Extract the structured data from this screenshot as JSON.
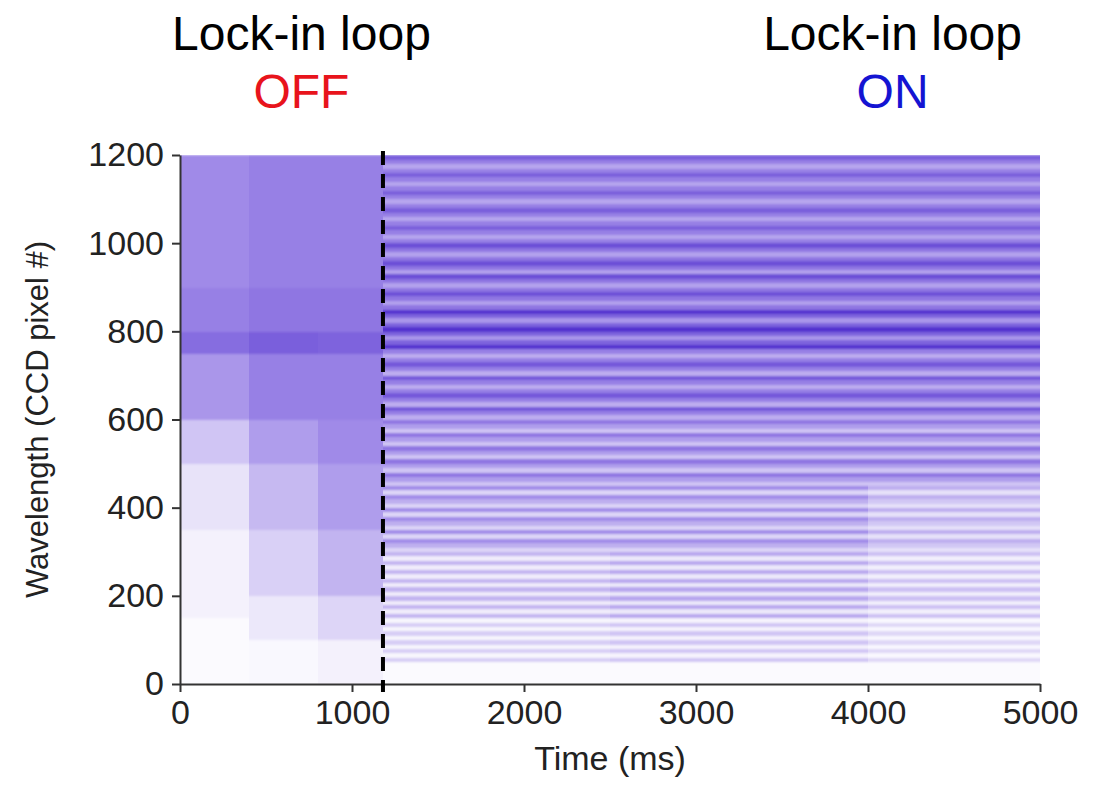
{
  "chart_data": {
    "type": "heatmap",
    "x_label": "Time (ms)",
    "y_label": "Wavelength (CCD pixel #)",
    "xlim": [
      0,
      5000
    ],
    "ylim": [
      0,
      1200
    ],
    "xticks": [
      0,
      1000,
      2000,
      3000,
      4000,
      5000
    ],
    "yticks": [
      0,
      200,
      400,
      600,
      800,
      1000,
      1200
    ],
    "grid": false,
    "zlim": [
      0,
      1
    ],
    "switch_time": 1180,
    "annotations": [
      {
        "text": "Lock-in loop",
        "label": "OFF",
        "color": "#e8141c"
      },
      {
        "text": "Lock-in loop",
        "label": "ON",
        "color": "#1414d2"
      }
    ],
    "x_edges": [
      0,
      400,
      800,
      1180,
      2500,
      4000,
      5000
    ],
    "y_edges": [
      0,
      10,
      20,
      30,
      40,
      50,
      60,
      70,
      80,
      90,
      100,
      110,
      120,
      130,
      140,
      150,
      160,
      170,
      180,
      190,
      200,
      210,
      220,
      230,
      240,
      250,
      260,
      270,
      280,
      290,
      300,
      310,
      320,
      330,
      340,
      350,
      360,
      370,
      380,
      390,
      400,
      410,
      420,
      430,
      440,
      450,
      460,
      470,
      480,
      490,
      500,
      510,
      520,
      530,
      540,
      550,
      560,
      570,
      580,
      590,
      600,
      610,
      620,
      630,
      640,
      650,
      660,
      670,
      680,
      690,
      700,
      710,
      720,
      730,
      740,
      750,
      760,
      770,
      780,
      790,
      800,
      810,
      820,
      830,
      840,
      850,
      860,
      870,
      880,
      890,
      900,
      910,
      920,
      930,
      940,
      950,
      960,
      970,
      980,
      990,
      1000,
      1010,
      1020,
      1030,
      1040,
      1050,
      1060,
      1070,
      1080,
      1090,
      1100,
      1110,
      1120,
      1130,
      1140,
      1150,
      1160,
      1170,
      1180,
      1190,
      1200
    ],
    "values": [
      [
        0.02,
        0.03,
        0.06,
        0.02,
        0.02,
        0.02
      ],
      [
        0.02,
        0.03,
        0.06,
        0.02,
        0.02,
        0.02
      ],
      [
        0.02,
        0.03,
        0.06,
        0.02,
        0.02,
        0.02
      ],
      [
        0.02,
        0.03,
        0.06,
        0.02,
        0.02,
        0.02
      ],
      [
        0.02,
        0.03,
        0.06,
        0.02,
        0.02,
        0.02
      ],
      [
        0.02,
        0.03,
        0.06,
        0.21,
        0.25,
        0.17
      ],
      [
        0.02,
        0.03,
        0.06,
        0.04,
        0.05,
        0.03
      ],
      [
        0.02,
        0.03,
        0.06,
        0.21,
        0.25,
        0.17
      ],
      [
        0.02,
        0.03,
        0.06,
        0.04,
        0.05,
        0.03
      ],
      [
        0.02,
        0.03,
        0.06,
        0.21,
        0.25,
        0.17
      ],
      [
        0.02,
        0.1,
        0.18,
        0.04,
        0.05,
        0.03
      ],
      [
        0.02,
        0.1,
        0.18,
        0.21,
        0.25,
        0.17
      ],
      [
        0.02,
        0.1,
        0.18,
        0.04,
        0.05,
        0.03
      ],
      [
        0.02,
        0.1,
        0.18,
        0.21,
        0.25,
        0.17
      ],
      [
        0.02,
        0.1,
        0.18,
        0.04,
        0.05,
        0.03
      ],
      [
        0.06,
        0.1,
        0.18,
        0.32,
        0.38,
        0.27
      ],
      [
        0.06,
        0.1,
        0.18,
        0.08,
        0.1,
        0.07
      ],
      [
        0.06,
        0.1,
        0.18,
        0.32,
        0.38,
        0.27
      ],
      [
        0.06,
        0.1,
        0.18,
        0.08,
        0.1,
        0.07
      ],
      [
        0.06,
        0.1,
        0.18,
        0.32,
        0.38,
        0.27
      ],
      [
        0.06,
        0.2,
        0.32,
        0.08,
        0.1,
        0.07
      ],
      [
        0.06,
        0.2,
        0.32,
        0.32,
        0.38,
        0.27
      ],
      [
        0.06,
        0.2,
        0.32,
        0.08,
        0.1,
        0.07
      ],
      [
        0.06,
        0.2,
        0.32,
        0.32,
        0.38,
        0.27
      ],
      [
        0.06,
        0.2,
        0.32,
        0.08,
        0.1,
        0.07
      ],
      [
        0.06,
        0.2,
        0.32,
        0.32,
        0.38,
        0.27
      ],
      [
        0.06,
        0.2,
        0.32,
        0.08,
        0.1,
        0.07
      ],
      [
        0.06,
        0.2,
        0.32,
        0.32,
        0.38,
        0.27
      ],
      [
        0.06,
        0.2,
        0.32,
        0.08,
        0.1,
        0.07
      ],
      [
        0.06,
        0.2,
        0.32,
        0.32,
        0.38,
        0.27
      ],
      [
        0.06,
        0.2,
        0.32,
        0.18,
        0.18,
        0.13
      ],
      [
        0.06,
        0.2,
        0.32,
        0.34,
        0.34,
        0.24
      ],
      [
        0.06,
        0.2,
        0.32,
        0.5,
        0.5,
        0.35
      ],
      [
        0.06,
        0.2,
        0.32,
        0.18,
        0.18,
        0.13
      ],
      [
        0.06,
        0.2,
        0.32,
        0.5,
        0.5,
        0.35
      ],
      [
        0.12,
        0.3,
        0.42,
        0.18,
        0.18,
        0.13
      ],
      [
        0.12,
        0.3,
        0.42,
        0.34,
        0.34,
        0.24
      ],
      [
        0.12,
        0.3,
        0.42,
        0.5,
        0.5,
        0.35
      ],
      [
        0.12,
        0.3,
        0.42,
        0.18,
        0.18,
        0.13
      ],
      [
        0.12,
        0.3,
        0.42,
        0.5,
        0.5,
        0.35
      ],
      [
        0.12,
        0.3,
        0.42,
        0.18,
        0.18,
        0.13
      ],
      [
        0.12,
        0.3,
        0.42,
        0.34,
        0.34,
        0.24
      ],
      [
        0.12,
        0.3,
        0.42,
        0.5,
        0.5,
        0.35
      ],
      [
        0.12,
        0.3,
        0.42,
        0.18,
        0.18,
        0.13
      ],
      [
        0.12,
        0.3,
        0.42,
        0.5,
        0.5,
        0.35
      ],
      [
        0.12,
        0.3,
        0.42,
        0.25,
        0.25,
        0.25
      ],
      [
        0.12,
        0.3,
        0.42,
        0.42,
        0.42,
        0.42
      ],
      [
        0.12,
        0.3,
        0.42,
        0.6,
        0.6,
        0.6
      ],
      [
        0.12,
        0.3,
        0.42,
        0.25,
        0.25,
        0.25
      ],
      [
        0.12,
        0.3,
        0.42,
        0.42,
        0.42,
        0.42
      ],
      [
        0.25,
        0.42,
        0.5,
        0.6,
        0.6,
        0.6
      ],
      [
        0.25,
        0.42,
        0.5,
        0.25,
        0.25,
        0.25
      ],
      [
        0.25,
        0.42,
        0.5,
        0.42,
        0.42,
        0.42
      ],
      [
        0.25,
        0.42,
        0.5,
        0.6,
        0.6,
        0.6
      ],
      [
        0.25,
        0.42,
        0.5,
        0.25,
        0.25,
        0.25
      ],
      [
        0.25,
        0.42,
        0.5,
        0.42,
        0.42,
        0.42
      ],
      [
        0.25,
        0.42,
        0.5,
        0.6,
        0.6,
        0.6
      ],
      [
        0.25,
        0.42,
        0.5,
        0.25,
        0.25,
        0.25
      ],
      [
        0.25,
        0.42,
        0.5,
        0.42,
        0.42,
        0.42
      ],
      [
        0.25,
        0.42,
        0.5,
        0.6,
        0.6,
        0.6
      ],
      [
        0.45,
        0.55,
        0.55,
        0.35,
        0.35,
        0.35
      ],
      [
        0.45,
        0.55,
        0.55,
        0.55,
        0.55,
        0.55
      ],
      [
        0.45,
        0.55,
        0.55,
        0.75,
        0.75,
        0.75
      ],
      [
        0.45,
        0.55,
        0.55,
        0.35,
        0.35,
        0.35
      ],
      [
        0.45,
        0.55,
        0.55,
        0.55,
        0.55,
        0.55
      ],
      [
        0.45,
        0.55,
        0.55,
        0.75,
        0.75,
        0.75
      ],
      [
        0.45,
        0.55,
        0.55,
        0.55,
        0.55,
        0.55
      ],
      [
        0.45,
        0.55,
        0.55,
        0.35,
        0.35,
        0.35
      ],
      [
        0.45,
        0.55,
        0.55,
        0.55,
        0.55,
        0.55
      ],
      [
        0.45,
        0.55,
        0.55,
        0.75,
        0.75,
        0.75
      ],
      [
        0.45,
        0.55,
        0.55,
        0.35,
        0.35,
        0.35
      ],
      [
        0.45,
        0.55,
        0.55,
        0.55,
        0.55,
        0.55
      ],
      [
        0.45,
        0.55,
        0.55,
        0.75,
        0.75,
        0.75
      ],
      [
        0.45,
        0.55,
        0.55,
        0.55,
        0.55,
        0.55
      ],
      [
        0.45,
        0.55,
        0.55,
        0.35,
        0.35,
        0.35
      ],
      [
        0.65,
        0.72,
        0.7,
        0.55,
        0.55,
        0.55
      ],
      [
        0.65,
        0.72,
        0.7,
        0.95,
        0.95,
        0.95
      ],
      [
        0.65,
        0.72,
        0.7,
        0.7,
        0.7,
        0.7
      ],
      [
        0.65,
        0.72,
        0.7,
        0.45,
        0.45,
        0.45
      ],
      [
        0.65,
        0.72,
        0.7,
        0.7,
        0.7,
        0.7
      ],
      [
        0.55,
        0.6,
        0.6,
        0.95,
        0.95,
        0.95
      ],
      [
        0.55,
        0.6,
        0.6,
        0.7,
        0.7,
        0.7
      ],
      [
        0.55,
        0.6,
        0.6,
        0.45,
        0.45,
        0.45
      ],
      [
        0.55,
        0.6,
        0.6,
        0.7,
        0.7,
        0.7
      ],
      [
        0.55,
        0.6,
        0.6,
        0.95,
        0.95,
        0.95
      ],
      [
        0.55,
        0.6,
        0.6,
        0.6,
        0.6,
        0.6
      ],
      [
        0.55,
        0.6,
        0.6,
        0.4,
        0.4,
        0.4
      ],
      [
        0.55,
        0.6,
        0.6,
        0.6,
        0.6,
        0.6
      ],
      [
        0.55,
        0.6,
        0.6,
        0.8,
        0.8,
        0.8
      ],
      [
        0.55,
        0.6,
        0.6,
        0.6,
        0.6,
        0.6
      ],
      [
        0.5,
        0.55,
        0.55,
        0.4,
        0.4,
        0.4
      ],
      [
        0.5,
        0.55,
        0.55,
        0.6,
        0.6,
        0.6
      ],
      [
        0.5,
        0.55,
        0.55,
        0.8,
        0.8,
        0.8
      ],
      [
        0.5,
        0.55,
        0.55,
        0.4,
        0.4,
        0.4
      ],
      [
        0.5,
        0.55,
        0.55,
        0.6,
        0.6,
        0.6
      ],
      [
        0.5,
        0.55,
        0.55,
        0.8,
        0.8,
        0.8
      ],
      [
        0.5,
        0.55,
        0.55,
        0.6,
        0.6,
        0.6
      ],
      [
        0.5,
        0.55,
        0.55,
        0.4,
        0.4,
        0.4
      ],
      [
        0.5,
        0.55,
        0.55,
        0.6,
        0.6,
        0.6
      ],
      [
        0.5,
        0.55,
        0.55,
        0.8,
        0.8,
        0.8
      ],
      [
        0.5,
        0.55,
        0.55,
        0.55,
        0.55,
        0.55
      ],
      [
        0.5,
        0.55,
        0.55,
        0.38,
        0.38,
        0.38
      ],
      [
        0.5,
        0.55,
        0.55,
        0.55,
        0.55,
        0.55
      ],
      [
        0.5,
        0.55,
        0.55,
        0.72,
        0.72,
        0.72
      ],
      [
        0.5,
        0.55,
        0.55,
        0.55,
        0.55,
        0.55
      ],
      [
        0.5,
        0.55,
        0.55,
        0.38,
        0.38,
        0.38
      ],
      [
        0.5,
        0.55,
        0.55,
        0.55,
        0.55,
        0.55
      ],
      [
        0.5,
        0.55,
        0.55,
        0.72,
        0.72,
        0.72
      ],
      [
        0.5,
        0.55,
        0.55,
        0.55,
        0.55,
        0.55
      ],
      [
        0.5,
        0.55,
        0.55,
        0.38,
        0.38,
        0.38
      ],
      [
        0.5,
        0.55,
        0.55,
        0.55,
        0.55,
        0.55
      ],
      [
        0.5,
        0.55,
        0.55,
        0.72,
        0.72,
        0.72
      ],
      [
        0.5,
        0.55,
        0.55,
        0.55,
        0.55,
        0.55
      ],
      [
        0.5,
        0.55,
        0.55,
        0.38,
        0.38,
        0.38
      ],
      [
        0.5,
        0.55,
        0.55,
        0.55,
        0.55,
        0.55
      ],
      [
        0.5,
        0.55,
        0.55,
        0.72,
        0.72,
        0.72
      ],
      [
        0.5,
        0.55,
        0.55,
        0.55,
        0.55,
        0.55
      ],
      [
        0.5,
        0.55,
        0.55,
        0.38,
        0.38,
        0.38
      ],
      [
        0.5,
        0.55,
        0.55,
        0.55,
        0.55,
        0.55
      ],
      [
        0.5,
        0.55,
        0.55,
        0.72,
        0.72,
        0.72
      ]
    ]
  }
}
